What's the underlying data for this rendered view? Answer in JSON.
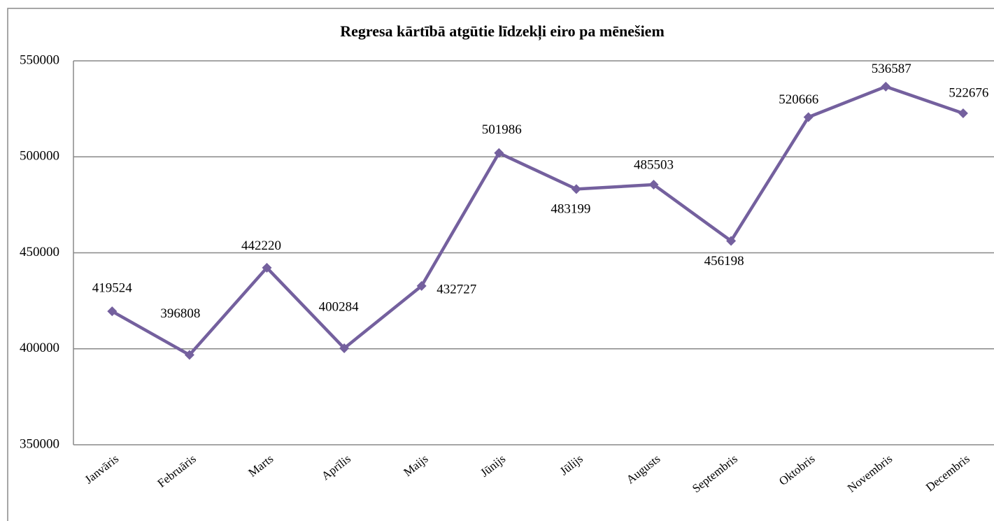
{
  "chart_data": {
    "type": "line",
    "title": "Regresa kārtībā atgūtie līdzekļi eiro pa mēnešiem",
    "categories": [
      "Janvāris",
      "Februāris",
      "Marts",
      "Aprīlis",
      "Maijs",
      "Jūnijs",
      "Jūlijs",
      "Augusts",
      "Septembris",
      "Oktobris",
      "Novembris",
      "Decembris"
    ],
    "series": [
      {
        "name": "Regresa kārtībā atgūtie līdzekļi",
        "color": "#74609e",
        "values": [
          419524,
          396808,
          442220,
          400284,
          432727,
          501986,
          483199,
          485503,
          456198,
          520666,
          536587,
          522676
        ]
      }
    ],
    "ylim": [
      350000,
      550000
    ],
    "yticks": [
      350000,
      400000,
      450000,
      500000,
      550000
    ],
    "grid": true
  }
}
